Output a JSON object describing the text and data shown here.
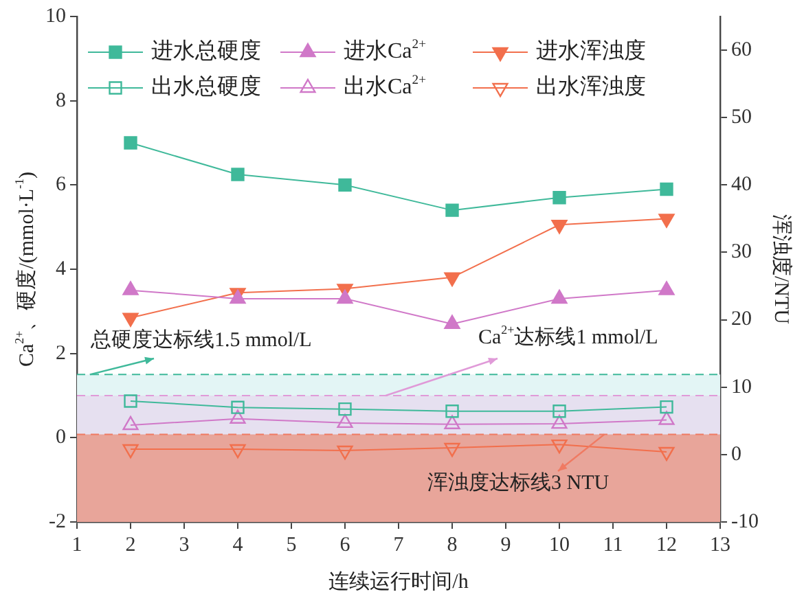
{
  "chart_data": {
    "type": "line",
    "xlabel": "连续运行时间/h",
    "ylabel": "Ca$^{2+}$、硬度/(mmol·L$^{-1}$)",
    "y2label": "浑浊度/NTU",
    "x": [
      2,
      4,
      6,
      8,
      10,
      12
    ],
    "series": [
      {
        "name": "进水总硬度",
        "color": "#3fb99a",
        "marker": "square",
        "values": [
          7.0,
          6.25,
          6.0,
          5.4,
          5.7,
          5.9
        ]
      },
      {
        "name": "出水总硬度",
        "color": "#3fb99a",
        "marker": "square-open",
        "values": [
          0.87,
          0.72,
          0.68,
          0.63,
          0.63,
          0.73
        ]
      },
      {
        "name": "进水Ca$^{2+}$",
        "color": "#d078c8",
        "marker": "triangle",
        "values": [
          3.5,
          3.3,
          3.3,
          2.7,
          3.3,
          3.5
        ]
      },
      {
        "name": "出水Ca$^{2+}$",
        "color": "#d078c8",
        "marker": "triangle-open",
        "values": [
          0.3,
          0.45,
          0.35,
          0.32,
          0.33,
          0.42
        ]
      },
      {
        "name": "进水浑浊度",
        "color": "#f26f4c",
        "marker": "triangle-down",
        "axis": "y2",
        "values": [
          20.3,
          24,
          24.6,
          26.3,
          34.1,
          35
        ]
      },
      {
        "name": "出水浑浊度",
        "color": "#f26f4c",
        "marker": "triangle-down-open",
        "axis": "y2",
        "values": [
          0.8,
          0.8,
          0.6,
          1,
          1.5,
          0.4
        ]
      }
    ],
    "xlim": [
      1,
      13
    ],
    "xticks": [
      1,
      2,
      3,
      4,
      5,
      6,
      7,
      8,
      9,
      10,
      11,
      12,
      13
    ],
    "ylim": [
      -2,
      10
    ],
    "yticks": [
      -2,
      0,
      2,
      4,
      6,
      8,
      10
    ],
    "y2lim": [
      -10,
      65
    ],
    "y2ticks": [
      -10,
      0,
      10,
      20,
      30,
      40,
      50,
      60
    ],
    "bands": [
      {
        "axis": "y",
        "from": 1,
        "to": 1.5,
        "color": "#e3f5f5"
      },
      {
        "axis": "y",
        "from": -2,
        "to": 1,
        "color": "#e6e0f0"
      },
      {
        "axis": "y2",
        "from": -10,
        "to": 3,
        "color": "#e8a59a"
      }
    ],
    "ref_lines": [
      {
        "axis": "y",
        "value": 1.5,
        "label": "总硬度达标线1.5 mmol/L",
        "color": "#3fb99a",
        "line_style": "dashed"
      },
      {
        "axis": "y",
        "value": 1,
        "label": "Ca$^{2+}$达标线1 mmol/L",
        "color": "#e09ad8",
        "line_style": "dashed"
      },
      {
        "axis": "y2",
        "value": 3,
        "label": "浑浊度达标线3 NTU",
        "color": "#f07a62",
        "line_style": "dashed"
      }
    ],
    "legend": "top left",
    "grid": false
  }
}
